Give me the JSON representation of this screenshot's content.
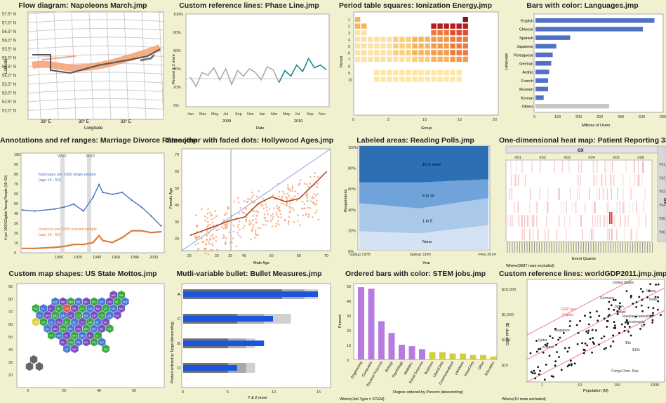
{
  "colors": {
    "bg": "#f1f0cf",
    "blue": "#4f72c2",
    "orange": "#e07b39",
    "teal": "#1a8a8a",
    "gray": "#9b9b9b",
    "purple": "#b77be0",
    "olive": "#d3cf3a",
    "red": "#e05555"
  },
  "p1": {
    "title": "Flow diagram: Napoleons March.jmp",
    "xlabel": "Longitude",
    "ylabel": "Latitude",
    "xticks": [
      "28° E",
      "30° E",
      "33° E"
    ],
    "yticks": [
      "57.5° N",
      "57.0° N",
      "56.5° N",
      "56.0° N",
      "55.5° N",
      "55.0° N",
      "54.5° N",
      "54.0° N",
      "53.5° N",
      "53.0° N",
      "52.5° N",
      "52.0° N"
    ]
  },
  "p2": {
    "title": "Custom reference lines: Phase Line.jmp",
    "ylabel": "Percent & 2 more",
    "xlabel": "Date",
    "yticks": [
      "100%",
      "80%",
      "60%",
      "40%",
      "20%",
      "0%"
    ],
    "months": [
      "Jan",
      "Mar",
      "May",
      "Jul",
      "Sep",
      "Nov",
      "Jan",
      "Mar",
      "May",
      "Jul",
      "Sep",
      "Nov"
    ],
    "years": [
      "2009",
      "2010"
    ]
  },
  "p3": {
    "title": "Period table squares: Ionization Energy.jmp",
    "ylabel": "Period",
    "xlabel": "Group",
    "yticks": [
      "1",
      "2",
      "3",
      "4",
      "5",
      "6",
      "7",
      "8",
      "9",
      "10"
    ],
    "xticks": [
      "0",
      "5",
      "10",
      "15",
      "20"
    ]
  },
  "p4": {
    "title": "Bars with color: Languages.jmp",
    "ylabel": "Language",
    "xlabel": "Millions of Users",
    "xticks": [
      "0",
      "100",
      "200",
      "300",
      "400",
      "500",
      "600"
    ]
  },
  "p5": {
    "title": "Annotations and ref ranges: Marriage Divorce Rates.jmp",
    "ylabel": "# per 1000 Eligible Young People (16–50)",
    "yticks": [
      "100",
      "90",
      "80",
      "70",
      "60",
      "50",
      "40",
      "30",
      "20",
      "10",
      "0"
    ],
    "xticks": [
      "1900",
      "1920",
      "1940",
      "1960",
      "1980",
      "2000"
    ],
    "ww1": "WW1",
    "ww2": "WW2",
    "ann1a": "Marriages per 1000 single people",
    "ann1b": "(age 16 - 50)",
    "ann2a": "Divorces per 1000 married people",
    "ann2b": "(age 16 - 50)"
  },
  "p6": {
    "title": "Smoother with faded dots: Hollywood Ages.jmp",
    "ylabel": "Female Age",
    "xlabel": "Male Age",
    "xticks": [
      "20",
      "30",
      "35",
      "40",
      "50",
      "60",
      "70"
    ],
    "yticks": [
      "70",
      "60",
      "50",
      "40",
      "30",
      "20"
    ]
  },
  "p7": {
    "title": "Labeled areas: Reading Polls.jmp",
    "ylabel": "Respondents",
    "xlabel": "Year",
    "yticks": [
      "100%",
      "80%",
      "60%",
      "40%",
      "20%",
      "0%"
    ],
    "xticks": [
      "Gallup 1978",
      "Gallup 1990",
      "Pew 2014"
    ],
    "bands": [
      "11 or more",
      "6 to 10",
      "1 to 5",
      "None"
    ]
  },
  "p8": {
    "title": "One-dimensional heat map: Patient Reporting 335.jmp",
    "gx": "GX",
    "gy": "GY",
    "cols": [
      "X01",
      "X02",
      "X03",
      "X04",
      "X05",
      "X06"
    ],
    "rows": [
      "Y01",
      "Y02",
      "Y03",
      "Y04",
      "Y05",
      "Y06"
    ],
    "xlabel": "Event Quarter",
    "note": "Where(3687 rows excluded)"
  },
  "p9": {
    "title": "Custom map shapes: US State Mottos.jmp",
    "xticks": [
      "0",
      "20",
      "40",
      "60"
    ],
    "yticks": [
      "90",
      "80",
      "70",
      "60",
      "50",
      "40",
      "30",
      "20"
    ]
  },
  "p10": {
    "title": "Mutli-variable bullet: Bullet Measures.jmp",
    "ylabel": "Product ordered by Target (descending)",
    "xlabel": "Y & 2 more",
    "cats": [
      "A",
      "C",
      "B",
      "D"
    ],
    "xticks": [
      "0",
      "5",
      "10",
      "15"
    ]
  },
  "p11": {
    "title": "Ordered bars with color: STEM jobs.jmp",
    "ylabel": "Percent",
    "xlabel": "Degree ordered by Percent (descending)",
    "yticks": [
      "50",
      "40",
      "30",
      "20",
      "10",
      "0"
    ],
    "note": "Where(Job Type = STEM)"
  },
  "p12": {
    "title": "Custom reference lines: worldGDP2011.jmp.jmp",
    "ylabel": "GDP PPP ($)",
    "xlabel": "Population (M)",
    "yticks": [
      "$10,000",
      "$1,000",
      "$100",
      "$10"
    ],
    "xticks": [
      "1",
      "10",
      "100",
      "1000"
    ],
    "refl": [
      "GDP per",
      "Capita"
    ],
    "note": "Where(10 rows excluded)",
    "countries": [
      "United States",
      "China",
      "India",
      "Japan",
      "Germany",
      "Russian Federation",
      "Brazil",
      "Indonesia",
      "Singapore",
      "Qatar",
      "Kosovo",
      "Congo Dem. Rep.",
      "$10k",
      "$1k",
      "$1"
    ]
  },
  "chart_data": [
    {
      "type": "line",
      "name": "Napoleons March",
      "x": [
        24.0,
        25.5,
        26.5,
        28.0,
        30.0,
        31.5,
        33.0,
        34.5,
        35.8
      ],
      "values": [
        54.9,
        55.0,
        55.0,
        54.7,
        54.6,
        54.8,
        55.1,
        55.3,
        55.7
      ]
    },
    {
      "type": "line",
      "name": "Phase Line",
      "x": [
        "Jan",
        "Feb",
        "Mar",
        "Apr",
        "May",
        "Jun",
        "Jul",
        "Aug",
        "Sep",
        "Oct",
        "Nov",
        "Dec",
        "Jan",
        "Feb",
        "Mar",
        "Apr",
        "May",
        "Jun",
        "Jul",
        "Aug",
        "Sep",
        "Oct",
        "Nov",
        "Dec"
      ],
      "values": [
        32,
        22,
        37,
        34,
        42,
        29,
        41,
        24,
        39,
        33,
        41,
        37,
        29,
        43,
        40,
        26,
        39,
        33,
        45,
        38,
        52,
        42,
        45,
        40
      ],
      "phase2_start": 15
    },
    {
      "type": "heatmap",
      "name": "Ionization Energy",
      "counts": [
        2,
        8,
        8,
        18,
        18,
        32,
        32
      ]
    },
    {
      "type": "bar",
      "name": "Languages",
      "categories": [
        "English",
        "Chinese",
        "Spanish",
        "Japanese",
        "Portuguese",
        "German",
        "Arabic",
        "French",
        "Russian",
        "Korean",
        "Others"
      ],
      "values": [
        565,
        510,
        165,
        99,
        82,
        75,
        65,
        60,
        60,
        39,
        350
      ]
    },
    {
      "type": "line",
      "name": "Marriage Divorce Rates",
      "x": [
        1867,
        1880,
        1900,
        1910,
        1920,
        1930,
        1940,
        1946,
        1950,
        1960,
        1970,
        1980,
        1990,
        2000,
        2010
      ],
      "series": [
        {
          "values": [
            42,
            41,
            43,
            45,
            48,
            41,
            55,
            68,
            60,
            58,
            60,
            52,
            45,
            36,
            26
          ]
        },
        {
          "values": [
            3,
            3,
            4,
            5,
            7,
            7,
            9,
            16,
            11,
            9,
            14,
            21,
            21,
            19,
            20
          ]
        }
      ]
    },
    {
      "type": "scatter",
      "name": "Hollywood Ages",
      "smoother": [
        [
          20,
          22
        ],
        [
          30,
          28
        ],
        [
          35,
          31
        ],
        [
          40,
          33
        ],
        [
          45,
          41
        ],
        [
          50,
          45
        ],
        [
          55,
          42
        ],
        [
          60,
          44
        ],
        [
          65,
          52
        ],
        [
          70,
          60
        ]
      ]
    },
    {
      "type": "area",
      "name": "Reading Polls",
      "categories": [
        "Gallup 1978",
        "Gallup 1990",
        "Pew 2014"
      ],
      "series": [
        {
          "name": "None",
          "values": [
            18,
            16,
            24
          ]
        },
        {
          "name": "1 to 5",
          "values": [
            27,
            24,
            26
          ]
        },
        {
          "name": "6 to 10",
          "values": [
            20,
            25,
            18
          ]
        },
        {
          "name": "11 or more",
          "values": [
            35,
            35,
            32
          ]
        }
      ]
    },
    {
      "type": "heatmap",
      "name": "Patient Reporting",
      "columns": [
        "X01",
        "X02",
        "X03",
        "X04",
        "X05",
        "X06"
      ],
      "rows": [
        "Y01",
        "Y02",
        "Y03",
        "Y04",
        "Y05",
        "Y06"
      ]
    },
    {
      "type": "scatter",
      "name": "US State Mottos"
    },
    {
      "type": "bar",
      "name": "Bullet Measures",
      "categories": [
        "A",
        "C",
        "B",
        "D"
      ],
      "series": [
        {
          "name": "range",
          "values": [
            15,
            12,
            8,
            8
          ]
        },
        {
          "name": "mid",
          "values": [
            13.5,
            9,
            7,
            7
          ]
        },
        {
          "name": "low",
          "values": [
            11,
            6,
            5,
            5
          ]
        },
        {
          "name": "value",
          "values": [
            15,
            10,
            9,
            6
          ]
        }
      ]
    },
    {
      "type": "bar",
      "name": "STEM jobs",
      "categories": [
        "Engineering",
        "Computers",
        "Physical Sciences",
        "Biology",
        "Psychology",
        "Multidisc.",
        "Social Sciences",
        "Business",
        "Liberal Arts",
        "Communications",
        "Literature",
        "Visual Arts",
        "Other",
        "Education"
      ],
      "values": [
        49,
        48,
        26,
        18,
        10,
        9,
        7,
        5,
        5,
        4,
        4,
        3,
        3,
        2
      ]
    },
    {
      "type": "scatter",
      "name": "worldGDP2011",
      "xlim": [
        1,
        1000
      ],
      "ylim": [
        10,
        20000
      ]
    }
  ]
}
